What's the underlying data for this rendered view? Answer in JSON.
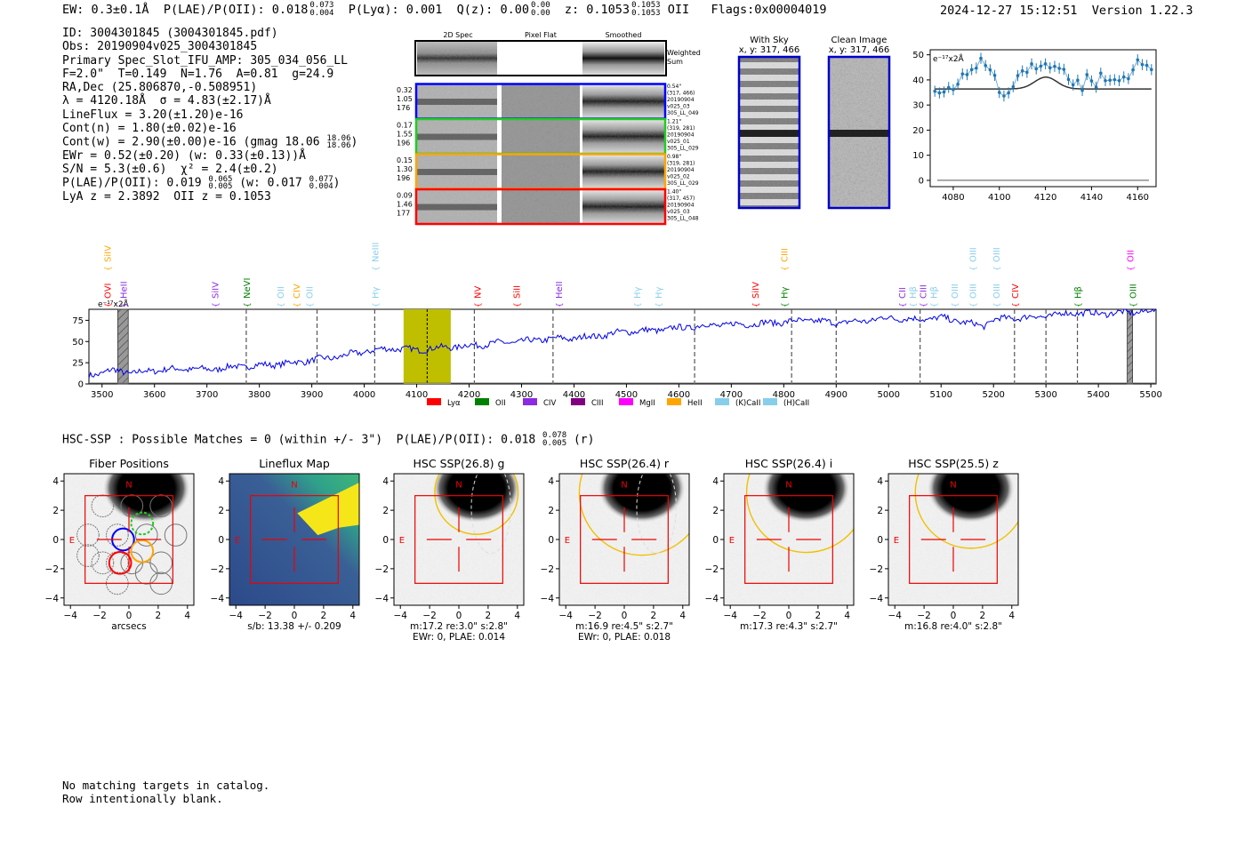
{
  "header": {
    "ew": "EW: 0.3±0.1Å",
    "plae_label": "P(LAE)/P(OII): 0.018",
    "plae_up": "0.073",
    "plae_lo": "0.004",
    "plya": "P(Lyα): 0.001",
    "qz_label": "Q(z): 0.00",
    "qz_up": "0.00",
    "qz_lo": "0.00",
    "z_label": "z: 0.1053",
    "z_up": "0.1053",
    "z_lo": "0.1053",
    "z_line": "OII",
    "flags": "Flags:0x00004019",
    "timestamp": "2024-12-27 15:12:51",
    "version": "Version 1.22.3"
  },
  "info": {
    "id": "ID: 3004301845 (3004301845.pdf)",
    "obs": "Obs: 20190904v025_3004301845",
    "primary": "Primary Spec_Slot_IFU_AMP: 305_034_056_LL",
    "fit": "F=2.0\"  T=0.149  N=1.76  A=0.81  g=24.9",
    "radec": "RA,Dec (25.806870,-0.508951)",
    "lambda": "λ = 4120.18Å  σ = 4.83(±2.17)Å",
    "lineflux": "LineFlux = 3.20(±1.20)e-16",
    "contn": "Cont(n) = 1.80(±0.02)e-16",
    "contw": "Cont(w) = 2.90(±0.00)e-16 (gmag 18.06",
    "gmag_up": "18.06",
    "gmag_lo": "18.06",
    "ewr": "EWr = 0.52(±0.20) (w: 0.33(±0.13))Å",
    "sn": "S/N = 5.3(±0.6)  χ² = 2.4(±0.2)",
    "plae2": "P(LAE)/P(OII): 0.019",
    "plae2_up": "0.065",
    "plae2_lo": "0.005",
    "plae2_w": "(w: 0.017",
    "plae2_w_up": "0.077",
    "plae2_w_lo": "0.004",
    "lyaz": "LyA z = 2.3892  OII z = 0.1053"
  },
  "cutouts": {
    "col_2d": "2D Spec",
    "col_flat": "Pixel Flat",
    "col_smooth": "Smoothed",
    "weighted": "Weighted",
    "sum": "Sum",
    "rows": [
      {
        "color": "#0000ff",
        "a": "0.32",
        "b": "1.05",
        "c": "176",
        "r1": "0.54\"",
        "r2": "(317, 466)",
        "r3": "20190904",
        "r4": "v025_03",
        "r5": "305_LL_049"
      },
      {
        "color": "#22cc22",
        "a": "0.17",
        "b": "1.55",
        "c": "196",
        "r1": "1.21\"",
        "r2": "(319, 281)",
        "r3": "20190904",
        "r4": "v025_01",
        "r5": "305_LL_029"
      },
      {
        "color": "#ffa500",
        "a": "0.15",
        "b": "1.30",
        "c": "196",
        "r1": "0.98\"",
        "r2": "(319, 281)",
        "r3": "20190904",
        "r4": "v025_02",
        "r5": "305_LL_029"
      },
      {
        "color": "#ff0000",
        "a": "0.09",
        "b": "1.46",
        "c": "177",
        "r1": "1.40\"",
        "r2": "(317, 457)",
        "r3": "20190904",
        "r4": "v025_03",
        "r5": "305_LL_048"
      }
    ]
  },
  "sky": {
    "with_sky": "With Sky",
    "with_sky_xy": "x, y: 317, 466",
    "clean": "Clean Image",
    "clean_xy": "x, y: 317, 466"
  },
  "zoom_chart": {
    "type": "scatter",
    "unit_label": "e⁻¹⁷x2Å",
    "x_ticks": [
      4080,
      4100,
      4120,
      4140,
      4160
    ],
    "y_ticks": [
      0,
      10,
      20,
      30,
      40,
      50
    ],
    "xlim": [
      4070,
      4168
    ],
    "ylim": [
      -2.5,
      52
    ],
    "points": [
      [
        4072,
        35.5
      ],
      [
        4074,
        34.8
      ],
      [
        4076,
        35.2
      ],
      [
        4078,
        37
      ],
      [
        4080,
        36.1
      ],
      [
        4082,
        38.3
      ],
      [
        4084,
        42.4
      ],
      [
        4086,
        42.1
      ],
      [
        4088,
        44.1
      ],
      [
        4090,
        44.7
      ],
      [
        4092,
        48.6
      ],
      [
        4094,
        45.7
      ],
      [
        4096,
        44
      ],
      [
        4098,
        41.8
      ],
      [
        4100,
        35
      ],
      [
        4102,
        33.6
      ],
      [
        4104,
        34.8
      ],
      [
        4106,
        37.3
      ],
      [
        4108,
        41.7
      ],
      [
        4110,
        43.6
      ],
      [
        4112,
        43
      ],
      [
        4114,
        46.4
      ],
      [
        4116,
        44.4
      ],
      [
        4118,
        45.5
      ],
      [
        4120,
        46.4
      ],
      [
        4122,
        44.8
      ],
      [
        4124,
        45.4
      ],
      [
        4126,
        44.6
      ],
      [
        4128,
        44.2
      ],
      [
        4130,
        40.2
      ],
      [
        4132,
        38
      ],
      [
        4134,
        39.9
      ],
      [
        4136,
        35.8
      ],
      [
        4138,
        42.1
      ],
      [
        4140,
        39.6
      ],
      [
        4142,
        37.1
      ],
      [
        4144,
        42.7
      ],
      [
        4146,
        39.7
      ],
      [
        4148,
        39.9
      ],
      [
        4150,
        40.1
      ],
      [
        4152,
        39.7
      ],
      [
        4154,
        41.2
      ],
      [
        4156,
        40.5
      ],
      [
        4158,
        44
      ],
      [
        4160,
        48
      ],
      [
        4162,
        46.1
      ],
      [
        4164,
        45.8
      ],
      [
        4166,
        44.1
      ]
    ],
    "fit_continuum": 36.4,
    "fit_center": 4120.18,
    "fit_sigma": 4.83,
    "fit_amp": 4.7
  },
  "chart_data": {
    "type": "line",
    "title": "",
    "unit_label": "e⁻¹⁷x2Å",
    "xlim": [
      3475,
      5510
    ],
    "ylim": [
      0,
      88
    ],
    "x_ticks": [
      3500,
      3600,
      3700,
      3800,
      3900,
      4000,
      4100,
      4200,
      4300,
      4400,
      4500,
      4600,
      4700,
      4800,
      4900,
      5000,
      5100,
      5200,
      5300,
      5400,
      5500
    ],
    "y_ticks": [
      0,
      25,
      50,
      75
    ],
    "anchors": [
      [
        3475,
        10
      ],
      [
        3520,
        16
      ],
      [
        3560,
        13
      ],
      [
        3600,
        16
      ],
      [
        3650,
        18
      ],
      [
        3700,
        17
      ],
      [
        3750,
        20
      ],
      [
        3800,
        22
      ],
      [
        3850,
        24
      ],
      [
        3900,
        28
      ],
      [
        3950,
        32
      ],
      [
        4000,
        38
      ],
      [
        4050,
        42
      ],
      [
        4100,
        40
      ],
      [
        4150,
        43
      ],
      [
        4200,
        45
      ],
      [
        4250,
        48
      ],
      [
        4300,
        50
      ],
      [
        4350,
        53
      ],
      [
        4400,
        54
      ],
      [
        4450,
        57
      ],
      [
        4500,
        62
      ],
      [
        4550,
        63
      ],
      [
        4600,
        66
      ],
      [
        4650,
        69
      ],
      [
        4700,
        70
      ],
      [
        4750,
        71
      ],
      [
        4800,
        73
      ],
      [
        4850,
        75
      ],
      [
        4900,
        72
      ],
      [
        4950,
        74
      ],
      [
        5000,
        78
      ],
      [
        5050,
        76
      ],
      [
        5100,
        78
      ],
      [
        5150,
        72
      ],
      [
        5180,
        68
      ],
      [
        5200,
        76
      ],
      [
        5250,
        78
      ],
      [
        5300,
        80
      ],
      [
        5350,
        84
      ],
      [
        5400,
        83
      ],
      [
        5450,
        84
      ],
      [
        5500,
        86
      ],
      [
        5510,
        85
      ]
    ],
    "vlines": [
      3775,
      3910,
      4020,
      4210,
      4360,
      4630,
      4815,
      4900,
      5060,
      5240,
      5300,
      5360
    ],
    "line_marker": 4120,
    "highlight": [
      4075,
      4165
    ],
    "masked": [
      [
        3530,
        3550
      ],
      [
        5455,
        5465
      ]
    ],
    "upper_labels": [
      {
        "x": 3510,
        "text": "SiIV",
        "color": "#ffa500"
      },
      {
        "x": 4020,
        "text": "NeIII",
        "color": "#87ceeb"
      },
      {
        "x": 4800,
        "text": "CIII",
        "color": "#ffa500"
      },
      {
        "x": 5160,
        "text": "OIII",
        "color": "#87ceeb"
      },
      {
        "x": 5205,
        "text": "OIII",
        "color": "#87ceeb"
      },
      {
        "x": 5460,
        "text": "OII",
        "color": "#ff00ff"
      }
    ],
    "lower_labels": [
      {
        "x": 3510,
        "text": "OVI",
        "color": "#ff0000"
      },
      {
        "x": 3540,
        "text": "HeII",
        "color": "#8a2be2"
      },
      {
        "x": 3715,
        "text": "SiIV",
        "color": "#8a2be2"
      },
      {
        "x": 3775,
        "text": "NeVI",
        "color": "#008000"
      },
      {
        "x": 3840,
        "text": "OII",
        "color": "#87ceeb"
      },
      {
        "x": 3870,
        "text": "CIV",
        "color": "#ffa500"
      },
      {
        "x": 3895,
        "text": "OII",
        "color": "#87ceeb"
      },
      {
        "x": 4020,
        "text": "Hγ",
        "color": "#87ceeb"
      },
      {
        "x": 4215,
        "text": "NV",
        "color": "#ff0000"
      },
      {
        "x": 4290,
        "text": "SiII",
        "color": "#ff0000"
      },
      {
        "x": 4370,
        "text": "HeII",
        "color": "#8a2be2"
      },
      {
        "x": 4520,
        "text": "Hγ",
        "color": "#87ceeb"
      },
      {
        "x": 4560,
        "text": "Hγ",
        "color": "#87ceeb"
      },
      {
        "x": 4745,
        "text": "SiIV",
        "color": "#ff0000"
      },
      {
        "x": 4800,
        "text": "Hγ",
        "color": "#008000"
      },
      {
        "x": 5025,
        "text": "CII",
        "color": "#8a2be2"
      },
      {
        "x": 5045,
        "text": "Hβ",
        "color": "#87ceeb"
      },
      {
        "x": 5065,
        "text": "CIII",
        "color": "#8a2be2"
      },
      {
        "x": 5085,
        "text": "Hβ",
        "color": "#87ceeb"
      },
      {
        "x": 5125,
        "text": "OIII",
        "color": "#87ceeb"
      },
      {
        "x": 5160,
        "text": "OIII",
        "color": "#87ceeb"
      },
      {
        "x": 5205,
        "text": "OIII",
        "color": "#87ceeb"
      },
      {
        "x": 5240,
        "text": "CIV",
        "color": "#ff0000"
      },
      {
        "x": 5360,
        "text": "Hβ",
        "color": "#008000"
      },
      {
        "x": 5465,
        "text": "OIII",
        "color": "#008000"
      }
    ],
    "legend": [
      {
        "label": "Lyα",
        "color": "#ff0000"
      },
      {
        "label": "OII",
        "color": "#008000"
      },
      {
        "label": "CIV",
        "color": "#8a2be2"
      },
      {
        "label": "CIII",
        "color": "#800080"
      },
      {
        "label": "MgII",
        "color": "#ff00ff"
      },
      {
        "label": "HeII",
        "color": "#ffa500"
      },
      {
        "label": "(K)CaII",
        "color": "#87ceeb"
      },
      {
        "label": "(H)CaII",
        "color": "#87ceeb"
      }
    ]
  },
  "hsc": {
    "line": "HSC-SSP : Possible Matches = 0 (within +/- 3\")  P(LAE)/P(OII): 0.018",
    "up": "0.078",
    "lo": "0.005",
    "band": "(r)",
    "ticks": [
      -4,
      -2,
      0,
      2,
      4
    ],
    "compass_n": "N",
    "compass_e": "E",
    "panels": [
      {
        "title": "Fiber Positions",
        "l1": "arcsecs",
        "l2": ""
      },
      {
        "title": "Lineflux Map",
        "l1": "s/b: 13.38 +/- 0.209",
        "l2": ""
      },
      {
        "title": "HSC SSP(26.8) g",
        "l1": "m:17.2  re:3.0\"  s:2.8\"",
        "l2": "EWr: 0, PLAE: 0.014"
      },
      {
        "title": "HSC SSP(26.4) r",
        "l1": "m:16.9  re:4.5\"  s:2.7\"",
        "l2": "EWr: 0, PLAE: 0.018"
      },
      {
        "title": "HSC SSP(26.4) i",
        "l1": "m:17.3  re:4.3\"  s:2.7\"",
        "l2": ""
      },
      {
        "title": "HSC SSP(25.5) z",
        "l1": "m:16.8  re:4.0\"  s:2.8\"",
        "l2": ""
      }
    ]
  },
  "footer": {
    "line1": "No matching targets in catalog.",
    "line2": "Row intentionally blank."
  }
}
